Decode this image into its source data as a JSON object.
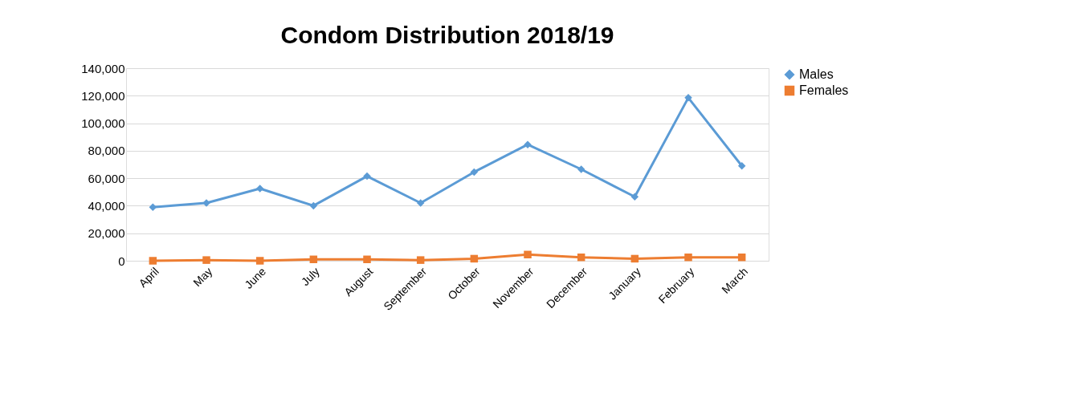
{
  "chart_data": {
    "type": "line",
    "title": "Condom Distribution 2018/19",
    "categories": [
      "April",
      "May",
      "June",
      "July",
      "August",
      "September",
      "October",
      "November",
      "December",
      "January",
      "February",
      "March"
    ],
    "series": [
      {
        "name": "Males",
        "color": "#5b9bd5",
        "marker": "diamond",
        "values": [
          39000,
          42000,
          52500,
          40000,
          61500,
          42000,
          64500,
          84500,
          66500,
          46500,
          118500,
          69000
        ]
      },
      {
        "name": "Females",
        "color": "#ed7d31",
        "marker": "square",
        "values": [
          0,
          500,
          0,
          1000,
          1000,
          500,
          1500,
          4500,
          2500,
          1500,
          2500,
          2500
        ]
      }
    ],
    "ylim": [
      0,
      140000
    ],
    "yticks": [
      0,
      {
        "value": 20000,
        "label": "20,000"
      },
      {
        "value": 40000,
        "label": "40,000"
      },
      {
        "value": 60000,
        "label": "60,000"
      },
      {
        "value": 80000,
        "label": "80,000"
      },
      {
        "value": 100000,
        "label": "100,000"
      },
      {
        "value": 120000,
        "label": "120,000"
      },
      {
        "value": 140000,
        "label": "140,000"
      }
    ],
    "grid": "y",
    "legend": "right"
  }
}
